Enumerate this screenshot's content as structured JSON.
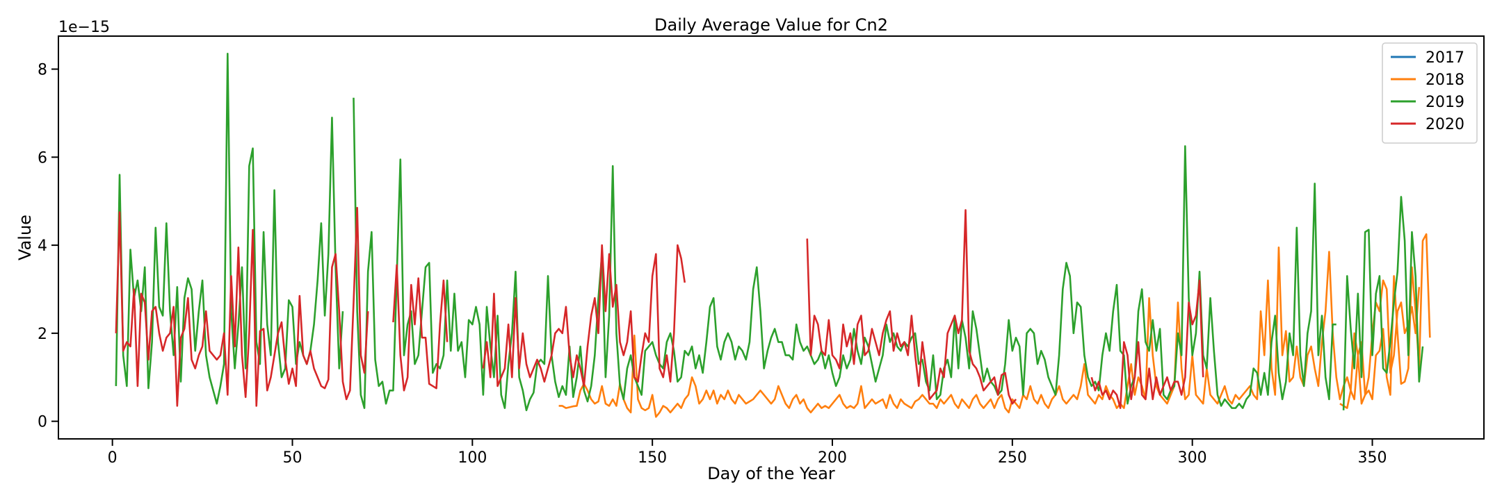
{
  "chart_data": {
    "type": "line",
    "title": "Daily Average Value for Cn2",
    "xlabel": "Day of the Year",
    "ylabel": "Value",
    "y_offset_label": "1e−15",
    "xlim": [
      -15,
      381
    ],
    "ylim": [
      -0.4,
      8.75
    ],
    "x_ticks": [
      0,
      50,
      100,
      150,
      200,
      250,
      300,
      350
    ],
    "x_tick_labels": [
      "0",
      "50",
      "100",
      "150",
      "200",
      "250",
      "300",
      "350"
    ],
    "y_ticks": [
      0,
      2,
      4,
      6,
      8
    ],
    "y_tick_labels": [
      "0",
      "2",
      "4",
      "6",
      "8"
    ],
    "y_unit_scale": 1e-15,
    "grid": false,
    "legend_position": "top-right",
    "series": [
      {
        "name": "2017",
        "color": "#1f77b4",
        "segments": []
      },
      {
        "name": "2018",
        "color": "#ff7f0e",
        "segments": [
          {
            "x_start": 124,
            "values": [
              0.35,
              0.35,
              0.3,
              0.32,
              0.34,
              0.35,
              0.7,
              0.85,
              0.7,
              0.5,
              0.4,
              0.45,
              0.8,
              0.4,
              0.35,
              0.5,
              0.35,
              0.85,
              0.5,
              0.3,
              0.2,
              1.95,
              0.5,
              0.3,
              0.25,
              0.3,
              0.6,
              0.1,
              0.2,
              0.35,
              0.3,
              0.2,
              0.3,
              0.4,
              0.3,
              0.5,
              0.6,
              1.0,
              0.8,
              0.4,
              0.5,
              0.7,
              0.5,
              0.7,
              0.4,
              0.6,
              0.5,
              0.7,
              0.5,
              0.4,
              0.6,
              0.5,
              0.4,
              0.45,
              0.5,
              0.6,
              0.7,
              0.6,
              0.5,
              0.4,
              0.5,
              0.8,
              0.6,
              0.4,
              0.3,
              0.5,
              0.6,
              0.4,
              0.5,
              0.3,
              0.2,
              0.3,
              0.4,
              0.3,
              0.35,
              0.3,
              0.4,
              0.5,
              0.6,
              0.4,
              0.3,
              0.35,
              0.3,
              0.4,
              0.8,
              0.3,
              0.4,
              0.5,
              0.4,
              0.45,
              0.5,
              0.3,
              0.6,
              0.4,
              0.3,
              0.5,
              0.4,
              0.35,
              0.3,
              0.45,
              0.5,
              0.6,
              0.5,
              0.4,
              0.4,
              0.3,
              0.5,
              0.4,
              0.5,
              0.6,
              0.4,
              0.3,
              0.5,
              0.4,
              0.3,
              0.5,
              0.6,
              0.4,
              0.3,
              0.4,
              0.5,
              0.3,
              0.5,
              0.6,
              0.3,
              0.2,
              0.5,
              0.4,
              0.3,
              0.6,
              0.5,
              0.8,
              0.5,
              0.4,
              0.6,
              0.4,
              0.3,
              0.5,
              0.6,
              0.8,
              0.5,
              0.4,
              0.5,
              0.6,
              0.5,
              0.8,
              1.3,
              0.6,
              0.5,
              0.4,
              0.6,
              0.5,
              0.8,
              0.6,
              0.5,
              0.3,
              0.4,
              0.3,
              0.8,
              1.3,
              0.6,
              1.0,
              0.8,
              0.5,
              2.8,
              1.5,
              0.8,
              0.6,
              0.5,
              0.4,
              0.6,
              0.8,
              2.7,
              1.2,
              0.5,
              0.6,
              1.5,
              0.6,
              0.5,
              0.4,
              1.2,
              0.6,
              0.5,
              0.4,
              0.6,
              0.8,
              0.5,
              0.4,
              0.6,
              0.5,
              0.6,
              0.7,
              0.8,
              0.6,
              0.5,
              2.5,
              1.5,
              3.2,
              1.2,
              0.6,
              3.95,
              1.5,
              2.05,
              0.9,
              1.0,
              1.7,
              1.0,
              0.8,
              1.5,
              1.7,
              1.2,
              0.8,
              1.8,
              2.5,
              3.85,
              2.0,
              1.0,
              0.5,
              0.8,
              1.0,
              0.7,
              0.5,
              1.5,
              0.4,
              0.6,
              1.0,
              2.0,
              2.7,
              2.5,
              3.2,
              3.0,
              1.1,
              1.5,
              2.5,
              2.7,
              2.0,
              2.2,
              2.6,
              2.0,
              3.05
            ]
          },
          {
            "x_start": 341,
            "values": [
              0.4,
              0.35,
              0.3,
              0.7,
              2.0,
              1.5,
              1.8,
              0.6,
              0.7,
              0.5,
              1.5,
              1.6,
              2.1,
              1.0,
              0.6,
              3.3,
              2.0,
              0.85,
              0.9,
              1.2,
              3.5,
              2.5,
              1.2,
              4.1,
              4.25,
              1.9
            ]
          }
        ]
      },
      {
        "name": "2019",
        "color": "#2ca02c",
        "segments": [
          {
            "x_start": 1,
            "values": [
              0.8,
              5.6,
              1.5,
              0.8,
              3.9,
              2.8,
              3.2,
              2.5,
              3.5,
              0.75,
              1.8,
              4.4,
              2.6,
              2.4,
              4.5,
              2.5,
              1.5,
              3.05,
              0.9,
              2.8,
              3.25,
              3.0,
              1.6,
              2.5,
              3.2,
              1.5,
              1.0,
              0.7,
              0.4,
              0.8,
              1.3,
              8.35,
              2.5,
              1.2,
              2.2,
              3.5,
              1.2,
              5.8,
              6.2,
              1.8,
              1.3,
              4.3,
              2.2,
              1.5,
              5.25,
              1.8,
              1.0,
              1.2,
              2.75,
              2.6,
              1.3,
              1.8,
              1.5,
              1.3,
              1.6,
              2.2,
              3.2,
              4.5,
              2.4,
              3.8,
              6.9,
              3.5,
              1.2,
              2.5
            ]
          },
          {
            "x_start": 67,
            "values": [
              7.35,
              2.5,
              0.6,
              0.3,
              3.4,
              4.3,
              1.4,
              0.8,
              0.9,
              0.4,
              0.7,
              0.7,
              3.3,
              5.95,
              1.5,
              2.2,
              2.5,
              1.3,
              1.5,
              2.5,
              3.5,
              3.6,
              1.1,
              1.3,
              1.2,
              1.5,
              3.2,
              1.6,
              2.9,
              1.6,
              1.8,
              1.0,
              2.3,
              2.2,
              2.6,
              2.2,
              0.6,
              2.6,
              1.7,
              1.0,
              2.4,
              0.6,
              0.3,
              1.3,
              2.0,
              3.4,
              1.0,
              0.7,
              0.25,
              0.5,
              0.65,
              1.3,
              1.4,
              1.3,
              3.3,
              1.5,
              0.9,
              0.55,
              0.8,
              0.6,
              1.7,
              0.55,
              1.0,
              1.7,
              0.7,
              0.45,
              0.8,
              1.5,
              2.8,
              3.8,
              1.0,
              2.4,
              5.8,
              2.0,
              0.8,
              0.5,
              1.2,
              1.5,
              1.0,
              0.8,
              0.6,
              1.6,
              1.7,
              1.8,
              1.5,
              1.3,
              1.2,
              1.8,
              2.0,
              1.6,
              0.9,
              1.0,
              1.6,
              1.5,
              1.7,
              1.2,
              1.5,
              1.1,
              1.8,
              2.6,
              2.8,
              1.7,
              1.4,
              1.8,
              2.0,
              1.8,
              1.4,
              1.7,
              1.6,
              1.4,
              1.8,
              3.0,
              3.5,
              2.5,
              1.2,
              1.6,
              1.9,
              2.1,
              1.8,
              1.8,
              1.5,
              1.5,
              1.4,
              2.2,
              1.8,
              1.6,
              1.7,
              1.5,
              1.3,
              1.4,
              1.6,
              1.2,
              1.5,
              1.1,
              0.8,
              1.0,
              1.5,
              1.2,
              1.4,
              2.1,
              1.6,
              1.3,
              1.9,
              1.7,
              1.3,
              0.9,
              1.2,
              1.5,
              2.2,
              1.8,
              2.0,
              1.7,
              1.6,
              1.8,
              1.7,
              1.9,
              2.0,
              1.3,
              1.4,
              0.9,
              0.7,
              1.5,
              0.5,
              0.6,
              1.2,
              1.4,
              1.0,
              2.4,
              1.2,
              2.3,
              1.9,
              1.2,
              2.5,
              2.1,
              1.5,
              0.9,
              1.2,
              0.9,
              0.8,
              0.6,
              0.7,
              1.3,
              2.3,
              1.6,
              1.9,
              1.7,
              0.6,
              2.0,
              2.1,
              2.0,
              1.3,
              1.6,
              1.4,
              1.0,
              0.8,
              0.6,
              1.5,
              3.0,
              3.6,
              3.3,
              2.0,
              2.7,
              2.6,
              1.5,
              1.0,
              0.8,
              0.9,
              0.7,
              1.5,
              2.0,
              1.6,
              2.5,
              3.1,
              1.6,
              1.5,
              0.4,
              0.8,
              1.0,
              2.5,
              3.0,
              1.8,
              1.6,
              2.3,
              1.6,
              2.1,
              0.6,
              0.5,
              0.7,
              0.8,
              2.0,
              1.5,
              6.25,
              2.8,
              1.5,
              2.0,
              3.4,
              1.5,
              1.2,
              2.8,
              1.6,
              0.6,
              0.35,
              0.5,
              0.4,
              0.3,
              0.3,
              0.4,
              0.3,
              0.5,
              0.6,
              1.2,
              1.1,
              0.6,
              1.1,
              0.6,
              1.8,
              2.4,
              1.1,
              0.5,
              0.9,
              2.0,
              1.5,
              4.4,
              1.5,
              0.8,
              2.0,
              2.5,
              5.4,
              1.5,
              2.4,
              1.0,
              0.5,
              2.2,
              2.2
            ]
          },
          {
            "x_start": 342,
            "values": [
              0.25,
              3.3,
              2.1,
              1.2,
              2.9,
              1.0,
              4.3,
              4.35,
              1.5,
              2.9,
              3.3,
              1.2,
              1.1,
              1.8,
              2.7,
              3.4,
              5.1,
              4.1,
              1.5,
              4.3,
              3.3,
              0.9,
              1.7
            ]
          }
        ]
      },
      {
        "name": "2020",
        "color": "#d62728",
        "segments": [
          {
            "x_start": 1,
            "values": [
              2.0,
              4.75,
              1.6,
              1.8,
              1.7,
              3.0,
              0.8,
              2.9,
              2.7,
              1.4,
              2.5,
              2.6,
              2.0,
              1.6,
              1.9,
              2.0,
              2.6,
              0.35,
              1.9,
              2.1,
              2.8,
              1.4,
              1.2,
              1.5,
              1.7,
              2.5,
              1.6,
              1.5,
              1.4,
              1.5,
              2.0,
              0.6,
              3.3,
              1.7,
              3.95,
              1.5,
              0.55,
              2.0,
              4.35,
              0.35,
              2.05,
              2.1,
              0.7,
              1.0,
              1.5,
              2.0,
              2.25,
              1.4,
              0.85,
              1.2,
              0.8,
              2.85,
              1.5,
              1.3,
              1.6,
              1.2,
              1.0,
              0.8,
              0.75,
              0.95,
              3.5,
              3.8,
              2.5,
              0.9,
              0.5,
              0.7,
              2.7,
              4.85,
              1.5,
              1.1,
              2.5
            ]
          },
          {
            "x_start": 78,
            "values": [
              2.25,
              3.55,
              1.5,
              0.7,
              1.0,
              3.1,
              2.2,
              3.25,
              1.9,
              1.9,
              0.85,
              0.8,
              0.75,
              2.2,
              3.2,
              1.8
            ]
          },
          {
            "x_start": 103,
            "values": [
              1.2,
              1.8,
              1.0,
              2.9,
              0.8,
              1.0,
              1.2,
              2.2,
              1.0,
              2.8,
              1.2,
              2.0,
              1.3,
              1.0,
              1.2,
              1.4,
              1.2,
              0.9,
              1.2,
              1.5,
              2.0,
              2.1,
              2.0,
              2.6,
              1.5,
              1.0,
              1.5,
              1.2,
              0.8,
              1.7,
              2.4,
              2.8,
              2.0,
              4.0,
              2.5,
              3.8,
              2.6,
              3.1,
              1.8,
              1.5,
              1.8,
              2.5,
              1.0,
              0.9,
              1.5,
              2.0,
              1.8,
              3.3,
              3.8,
              1.2,
              1.0,
              1.5,
              0.9,
              2.0,
              4.0,
              3.7,
              3.15
            ]
          },
          {
            "x_start": 193,
            "values": [
              4.15,
              1.5,
              2.4,
              2.2,
              1.6,
              1.5,
              2.3,
              1.5,
              1.4,
              1.2,
              2.2,
              1.7,
              2.0,
              1.3,
              2.2,
              2.4,
              1.5,
              1.6,
              2.1,
              1.8,
              1.5,
              2.0,
              2.3,
              2.5,
              1.6,
              2.0,
              1.7,
              1.8,
              1.5,
              2.4,
              1.5,
              0.8,
              1.8,
              1.2,
              0.5,
              0.6,
              0.7,
              1.2,
              1.0,
              2.0,
              2.2,
              2.4,
              2.0,
              2.3,
              4.8,
              1.6,
              1.3,
              1.2,
              1.0,
              0.7,
              0.8,
              0.9,
              1.0,
              0.6,
              1.05,
              1.1,
              0.6,
              0.4,
              0.5
            ]
          },
          {
            "x_start": 272,
            "values": [
              1.0,
              0.7,
              0.9,
              0.6,
              0.7,
              0.5,
              0.7,
              0.6,
              0.3,
              1.8,
              1.5,
              0.5,
              1.0,
              1.8,
              0.6,
              0.5,
              1.2,
              0.5,
              1.0,
              0.6,
              0.8,
              1.0,
              0.7,
              0.9,
              0.9,
              0.6,
              1.0,
              2.7,
              2.2,
              2.4,
              3.2,
              1.0
            ]
          }
        ]
      }
    ]
  }
}
